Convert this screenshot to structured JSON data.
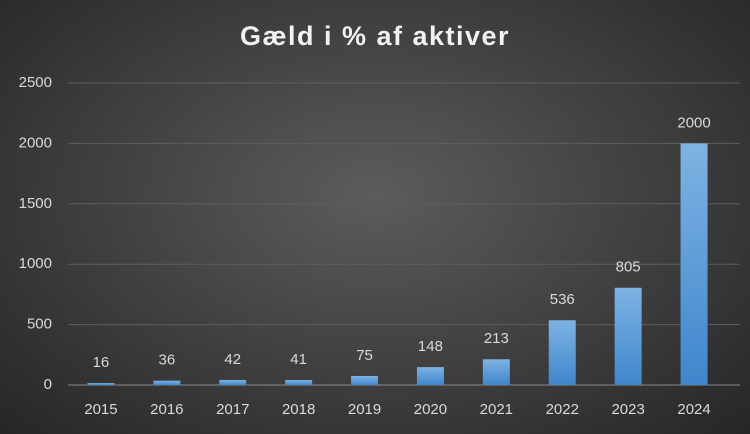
{
  "chart_data": {
    "type": "bar",
    "title": "Gæld i % af aktiver",
    "categories": [
      "2015",
      "2016",
      "2017",
      "2018",
      "2019",
      "2020",
      "2021",
      "2022",
      "2023",
      "2024"
    ],
    "values": [
      16,
      36,
      42,
      41,
      75,
      148,
      213,
      536,
      805,
      2000
    ],
    "color": "#5b9bd5",
    "ylim": [
      0,
      2500
    ],
    "yticks": [
      0,
      500,
      1000,
      1500,
      2000,
      2500
    ],
    "grid": true
  }
}
